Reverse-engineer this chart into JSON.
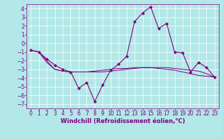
{
  "x": [
    0,
    1,
    2,
    3,
    4,
    5,
    6,
    7,
    8,
    9,
    10,
    11,
    12,
    13,
    14,
    15,
    16,
    17,
    18,
    19,
    20,
    21,
    22,
    23
  ],
  "line1": [
    -0.8,
    -1.0,
    -1.8,
    -2.5,
    -3.0,
    -3.3,
    -5.2,
    -4.5,
    -6.7,
    -4.8,
    -3.1,
    -2.4,
    -1.5,
    2.5,
    3.5,
    4.2,
    1.7,
    2.3,
    -1.0,
    -1.1,
    -3.3,
    -2.2,
    -2.8,
    -3.9
  ],
  "line2": [
    -0.8,
    -1.0,
    -2.0,
    -3.0,
    -3.2,
    -3.3,
    -3.3,
    -3.3,
    -3.2,
    -3.1,
    -3.0,
    -2.9,
    -2.9,
    -2.8,
    -2.8,
    -2.8,
    -2.8,
    -2.8,
    -2.9,
    -3.0,
    -3.1,
    -3.2,
    -3.5,
    -3.9
  ],
  "line3": [
    -0.8,
    -1.0,
    -2.2,
    -3.0,
    -3.2,
    -3.3,
    -3.3,
    -3.3,
    -3.3,
    -3.3,
    -3.2,
    -3.1,
    -3.0,
    -2.9,
    -2.8,
    -2.8,
    -2.9,
    -3.0,
    -3.1,
    -3.3,
    -3.5,
    -3.7,
    -3.8,
    -3.9
  ],
  "line_color": "#800080",
  "bg_color": "#b2e8e8",
  "grid_color": "#ffffff",
  "xlabel": "Windchill (Refroidissement éolien,°C)",
  "ylim": [
    -7.5,
    4.5
  ],
  "xlim": [
    -0.5,
    23.5
  ],
  "yticks": [
    -7,
    -6,
    -5,
    -4,
    -3,
    -2,
    -1,
    0,
    1,
    2,
    3,
    4
  ],
  "xticks": [
    0,
    1,
    2,
    3,
    4,
    5,
    6,
    7,
    8,
    9,
    10,
    11,
    12,
    13,
    14,
    15,
    16,
    17,
    18,
    19,
    20,
    21,
    22,
    23
  ],
  "marker": "D",
  "markersize": 2,
  "linewidth": 0.8,
  "font_color": "#800080",
  "font_size": 5.5,
  "label_font_size": 6
}
